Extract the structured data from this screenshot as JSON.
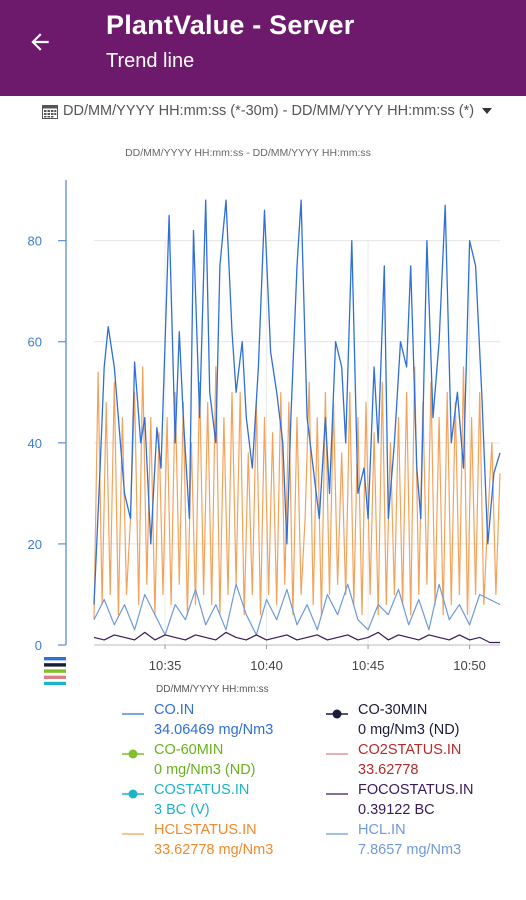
{
  "header": {
    "title": "PlantValue - Server",
    "subtitle": "Trend line",
    "back_icon": "arrow-left-icon",
    "bg_color": "#6e1a6c"
  },
  "range": {
    "icon": "calendar-icon",
    "text": "DD/MM/YYYY HH:mm:ss (*-30m) - DD/MM/YYYY HH:mm:ss (*)",
    "dropdown_icon": "caret-down-icon"
  },
  "chart_data": {
    "type": "line",
    "subtitle": "DD/MM/YYYY HH:mm:ss - DD/MM/YYYY HH:mm:ss",
    "xlabel": "DD/MM/YYYY HH:mm:ss",
    "ylabel": "",
    "x_ticks": [
      "10:35",
      "10:40",
      "10:45",
      "10:50"
    ],
    "x_tick_minutes": [
      35,
      40,
      45,
      50
    ],
    "x_range_minutes": [
      31.5,
      51.5
    ],
    "y_ticks": [
      0,
      20,
      40,
      60,
      80
    ],
    "ylim": [
      0,
      92
    ],
    "grid": true,
    "series": [
      {
        "name": "CO.IN",
        "value": "34.06469 mg/Nm3",
        "color": "#2f6fd6",
        "value_color": "#2f6fd6",
        "symbol": "line",
        "x": [
          31.5,
          31.8,
          32.0,
          32.2,
          32.5,
          32.8,
          33.0,
          33.3,
          33.5,
          33.8,
          34.0,
          34.3,
          34.6,
          34.8,
          35.0,
          35.2,
          35.5,
          35.7,
          35.9,
          36.2,
          36.4,
          36.7,
          37.0,
          37.2,
          37.5,
          37.7,
          38.0,
          38.3,
          38.5,
          38.8,
          39.0,
          39.3,
          39.6,
          39.9,
          40.2,
          40.5,
          40.8,
          41.0,
          41.2,
          41.5,
          41.7,
          42.0,
          42.3,
          42.6,
          42.9,
          43.1,
          43.4,
          43.7,
          43.9,
          44.2,
          44.5,
          44.8,
          45.0,
          45.3,
          45.5,
          45.8,
          46.0,
          46.3,
          46.6,
          46.9,
          47.1,
          47.4,
          47.6,
          47.9,
          48.2,
          48.5,
          48.8,
          49.1,
          49.4,
          49.7,
          50.0,
          50.3,
          50.6,
          50.9,
          51.2,
          51.5
        ],
        "y": [
          8,
          35,
          55,
          63,
          55,
          40,
          30,
          25,
          56,
          40,
          45,
          20,
          43,
          35,
          60,
          85,
          40,
          62,
          45,
          25,
          82,
          45,
          88,
          50,
          40,
          75,
          88,
          62,
          50,
          60,
          45,
          35,
          55,
          86,
          58,
          50,
          40,
          20,
          45,
          75,
          88,
          45,
          35,
          25,
          45,
          30,
          60,
          55,
          40,
          80,
          30,
          35,
          25,
          55,
          40,
          75,
          25,
          40,
          60,
          55,
          75,
          35,
          25,
          80,
          45,
          60,
          87,
          40,
          50,
          35,
          80,
          75,
          50,
          20,
          34,
          38
        ]
      },
      {
        "name": "CO-30MIN",
        "value": "0 mg/Nm3 (ND)",
        "color": "#1b1b3a",
        "value_color": "#1b1b3a",
        "symbol": "dot-line",
        "x": [],
        "y": []
      },
      {
        "name": "CO-60MIN",
        "value": "0 mg/Nm3 (ND)",
        "color": "#7fbf2a",
        "value_color": "#6ab01e",
        "symbol": "dot-line",
        "x": [],
        "y": []
      },
      {
        "name": "CO2STATUS.IN",
        "value": "33.62778",
        "color": "#d98080",
        "value_color": "#b52a2a",
        "symbol": "line",
        "x": [],
        "y": []
      },
      {
        "name": "COSTATUS.IN",
        "value": "3 BC (V)",
        "color": "#1ab3c8",
        "value_color": "#1ab3c8",
        "symbol": "dot-line",
        "x": [],
        "y": []
      },
      {
        "name": "FOCOSTATUS.IN",
        "value": "0.39122 BC",
        "color": "#3a1a5a",
        "value_color": "#3a1a5a",
        "symbol": "line",
        "x": [
          31.5,
          32.0,
          32.5,
          33.0,
          33.5,
          34.0,
          34.5,
          35.0,
          35.5,
          36.0,
          36.5,
          37.0,
          37.5,
          38.0,
          38.5,
          39.0,
          39.5,
          40.0,
          40.5,
          41.0,
          41.5,
          42.0,
          42.5,
          43.0,
          43.5,
          44.0,
          44.5,
          45.0,
          45.5,
          46.0,
          46.5,
          47.0,
          47.5,
          48.0,
          48.5,
          49.0,
          49.5,
          50.0,
          50.5,
          51.0,
          51.5
        ],
        "y": [
          1.5,
          1.0,
          2.0,
          1.5,
          1.0,
          2.5,
          1.0,
          2.0,
          1.5,
          1.0,
          2.0,
          1.5,
          1.0,
          2.5,
          1.5,
          1.0,
          2.0,
          1.0,
          1.5,
          2.0,
          1.0,
          1.5,
          2.0,
          1.0,
          1.5,
          2.0,
          1.0,
          1.5,
          2.5,
          1.0,
          2.0,
          1.5,
          1.0,
          2.0,
          1.5,
          1.0,
          2.0,
          1.0,
          1.5,
          0.5,
          0.5
        ]
      },
      {
        "name": "HCLSTATUS.IN",
        "value": "33.62778 mg/Nm3",
        "color": "#f4a25a",
        "value_color": "#f08a2c",
        "symbol": "line",
        "x": [
          31.5,
          31.7,
          31.9,
          32.1,
          32.3,
          32.5,
          32.7,
          32.9,
          33.1,
          33.3,
          33.5,
          33.7,
          33.9,
          34.1,
          34.3,
          34.5,
          34.7,
          34.9,
          35.1,
          35.3,
          35.5,
          35.7,
          35.9,
          36.1,
          36.3,
          36.5,
          36.7,
          36.9,
          37.1,
          37.3,
          37.5,
          37.7,
          37.9,
          38.1,
          38.3,
          38.5,
          38.7,
          38.9,
          39.1,
          39.3,
          39.5,
          39.7,
          39.9,
          40.1,
          40.3,
          40.5,
          40.7,
          40.9,
          41.1,
          41.3,
          41.5,
          41.7,
          41.9,
          42.1,
          42.3,
          42.5,
          42.7,
          42.9,
          43.1,
          43.3,
          43.5,
          43.7,
          43.9,
          44.1,
          44.3,
          44.5,
          44.7,
          44.9,
          45.1,
          45.3,
          45.5,
          45.7,
          45.9,
          46.1,
          46.3,
          46.5,
          46.7,
          46.9,
          47.1,
          47.3,
          47.5,
          47.7,
          47.9,
          48.1,
          48.3,
          48.5,
          48.7,
          48.9,
          49.1,
          49.3,
          49.5,
          49.7,
          49.9,
          50.1,
          50.3,
          50.5,
          50.7,
          50.9,
          51.1,
          51.3,
          51.5
        ],
        "y": [
          5,
          54,
          8,
          48,
          10,
          52,
          6,
          45,
          10,
          25,
          50,
          8,
          55,
          12,
          45,
          6,
          42,
          10,
          45,
          8,
          50,
          12,
          48,
          6,
          40,
          8,
          52,
          10,
          48,
          8,
          55,
          6,
          45,
          10,
          50,
          12,
          50,
          6,
          38,
          10,
          48,
          6,
          45,
          10,
          42,
          8,
          50,
          12,
          48,
          6,
          45,
          10,
          25,
          52,
          8,
          45,
          6,
          50,
          10,
          48,
          12,
          38,
          10,
          50,
          8,
          45,
          6,
          48,
          10,
          42,
          6,
          52,
          8,
          40,
          10,
          45,
          8,
          50,
          6,
          55,
          10,
          48,
          12,
          52,
          8,
          45,
          6,
          50,
          8,
          48,
          10,
          55,
          6,
          45,
          10,
          50,
          8,
          25,
          40,
          10,
          34
        ]
      },
      {
        "name": "HCL.IN",
        "value": "7.8657 mg/Nm3",
        "color": "#6f9ad8",
        "value_color": "#6f9ad8",
        "symbol": "line",
        "x": [
          31.5,
          32.0,
          32.5,
          33.0,
          33.5,
          34.0,
          34.5,
          35.0,
          35.5,
          36.0,
          36.5,
          37.0,
          37.5,
          38.0,
          38.5,
          39.0,
          39.5,
          40.0,
          40.5,
          41.0,
          41.5,
          42.0,
          42.5,
          43.0,
          43.5,
          44.0,
          44.5,
          45.0,
          45.5,
          46.0,
          46.5,
          47.0,
          47.5,
          48.0,
          48.5,
          49.0,
          49.5,
          50.0,
          50.5,
          51.0,
          51.5
        ],
        "y": [
          5,
          9,
          4,
          8,
          3,
          10,
          6,
          2,
          8,
          5,
          11,
          4,
          8,
          3,
          12,
          6,
          2,
          9,
          5,
          11,
          4,
          8,
          3,
          10,
          6,
          12,
          5,
          3,
          8,
          6,
          11,
          4,
          9,
          3,
          12,
          5,
          8,
          4,
          10,
          9,
          8
        ]
      }
    ]
  }
}
